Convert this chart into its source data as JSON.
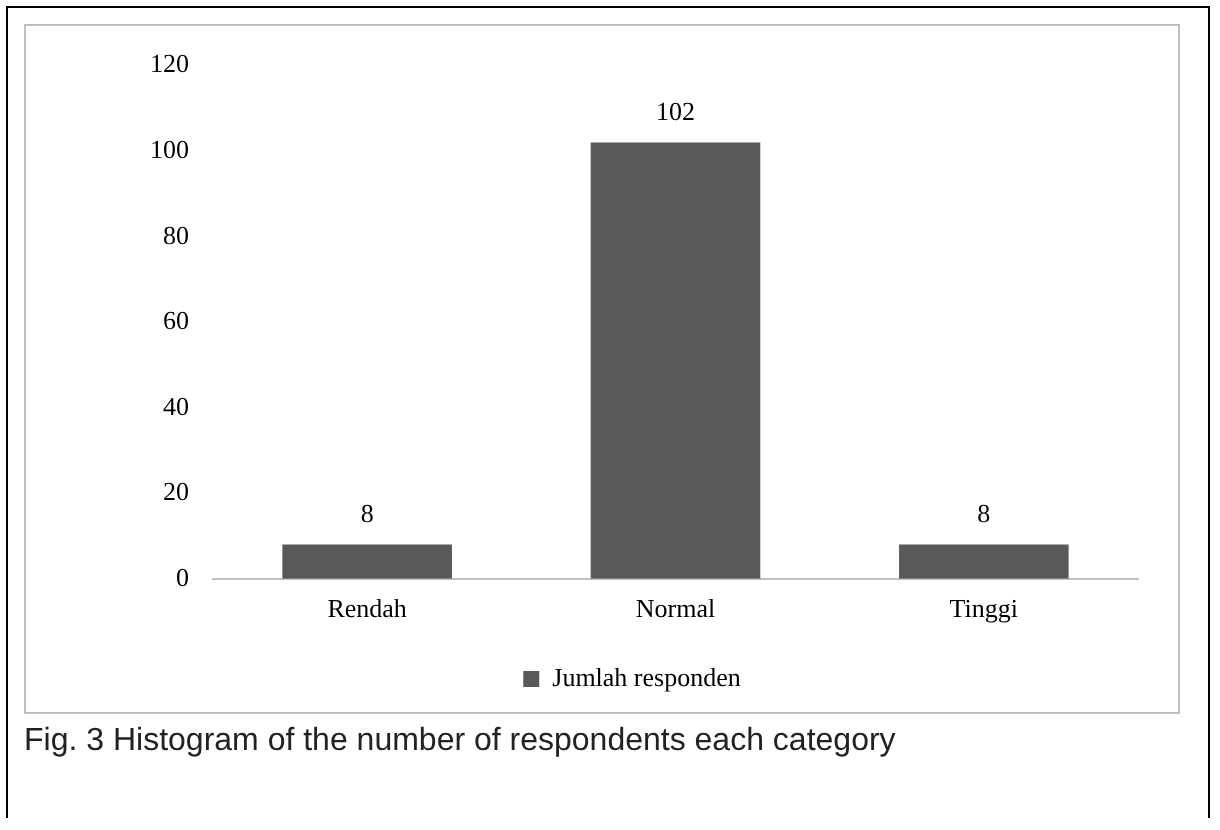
{
  "chart_data": {
    "type": "bar",
    "categories": [
      "Rendah",
      "Normal",
      "Tinggi"
    ],
    "series": [
      {
        "name": "Jumlah responden",
        "color": "#595959",
        "values": [
          8,
          102,
          8
        ]
      }
    ],
    "ylim": [
      0,
      120
    ],
    "yticks": [
      0,
      20,
      40,
      60,
      80,
      100,
      120
    ],
    "grid": false,
    "legend": "bottom",
    "data_labels": true,
    "annotations": [
      "Fig. 3 Histogram of the number of respondents each category"
    ]
  }
}
